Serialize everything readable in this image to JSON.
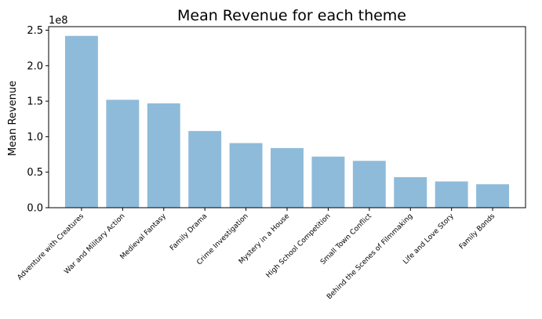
{
  "chart_data": {
    "type": "bar",
    "title": "Mean Revenue for each theme",
    "xlabel": "",
    "ylabel": "Mean Revenue",
    "y_offset_label": "1e8",
    "y_scale": 100000000,
    "ylim": [
      0,
      2.55
    ],
    "yticks": [
      "0.0",
      "0.5",
      "1.0",
      "1.5",
      "2.0",
      "2.5"
    ],
    "yticks_values": [
      0,
      0.5,
      1.0,
      1.5,
      2.0,
      2.5
    ],
    "categories": [
      "Adventure with Creatures",
      "War and Military Action",
      "Medieval Fantasy",
      "Family Drama",
      "Crime Investigation",
      "Mystery in a House",
      "High School Competition",
      "Small Town Conflict",
      "Behind the Scenes of Filmmaking",
      "Life and Love Story",
      "Family Bonds"
    ],
    "values": [
      2.42,
      1.52,
      1.47,
      1.08,
      0.91,
      0.84,
      0.72,
      0.66,
      0.43,
      0.37,
      0.33
    ],
    "bar_color": "#8fbbda",
    "grid": false,
    "legend": "none"
  }
}
